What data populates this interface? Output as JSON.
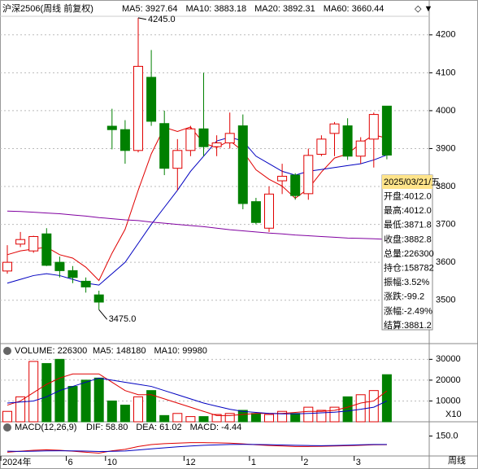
{
  "chart_data": [
    {
      "type": "candlestick",
      "title": "沪深2506(周线 前复权)",
      "categories": [
        "2024年",
        null,
        null,
        null,
        null,
        "6",
        null,
        null,
        "10",
        null,
        null,
        null,
        null,
        null,
        "12",
        null,
        null,
        null,
        null,
        "1",
        null,
        null,
        null,
        "2",
        null,
        null,
        null,
        "3",
        null,
        null
      ],
      "open": [
        3577,
        3648,
        3630,
        3675,
        3600,
        3578,
        3550,
        3514,
        3959,
        3950,
        3895,
        4088,
        3966,
        3848,
        3895,
        3952,
        3905,
        3915,
        3960,
        3760,
        3690,
        3815,
        3830,
        3781,
        3885,
        3940,
        3960,
        3880,
        3925,
        4012.0
      ],
      "high": [
        3645,
        3680,
        3670,
        3690,
        3615,
        3590,
        3560,
        3525,
        4005,
        3975,
        4245,
        4160,
        4000,
        3925,
        3960,
        4100,
        3935,
        3995,
        3990,
        3770,
        3800,
        3860,
        3835,
        3900,
        3935,
        3970,
        3980,
        3930,
        3995,
        4012.0
      ],
      "low": [
        3570,
        3640,
        3625,
        3590,
        3560,
        3545,
        3520,
        3475,
        3898,
        3860,
        3890,
        3960,
        3830,
        3790,
        3880,
        3880,
        3880,
        3900,
        3740,
        3700,
        3680,
        3780,
        3765,
        3765,
        3880,
        3880,
        3870,
        3860,
        3850,
        3871.8
      ],
      "close": [
        3600,
        3660,
        3668,
        3592,
        3578,
        3560,
        3535,
        3495,
        3950,
        3895,
        4117,
        3972,
        3848,
        3895,
        3952,
        3905,
        3915,
        3940,
        3755,
        3705,
        3780,
        3827,
        3776,
        3882,
        3925,
        3965,
        3880,
        3920,
        3990,
        3882.8
      ],
      "up_color": "#e00000",
      "down_color": "#008000",
      "ylim": [
        3422,
        4249
      ],
      "yticks": [
        3500,
        3600,
        3700,
        3800,
        3900,
        4000,
        4100,
        4200
      ],
      "lines": [
        {
          "label": "MA5: 3927.64",
          "color": "#e00000",
          "values": [
            3620,
            3630,
            3635,
            3640,
            3620,
            3611,
            3587,
            3552,
            3624,
            3687,
            3790,
            3886,
            3956,
            3945,
            3957,
            3914,
            3903,
            3921,
            3893,
            3844,
            3819,
            3801,
            3769,
            3794,
            3838,
            3875,
            3886,
            3914,
            3936,
            3927.64
          ]
        },
        {
          "label": "MA10: 3883.18",
          "color": "#0000c0",
          "values": [
            3545,
            3555,
            3565,
            3570,
            3565,
            3555,
            3545,
            3540,
            3570,
            3600,
            3650,
            3700,
            3745,
            3790,
            3840,
            3880,
            3920,
            3930,
            3920,
            3880,
            3860,
            3840,
            3830,
            3840,
            3845,
            3850,
            3855,
            3860,
            3870,
            3883.18
          ]
        },
        {
          "label": "MA20: 3892.31",
          "color": "#303030",
          "values": null
        },
        {
          "label": "MA60: 3660.44",
          "color": "#8000a0",
          "values": [
            3735,
            3734,
            3732,
            3730,
            3728,
            3725,
            3722,
            3718,
            3715,
            3712,
            3710,
            3706,
            3703,
            3700,
            3697,
            3694,
            3690,
            3686,
            3683,
            3680,
            3677,
            3675,
            3672,
            3670,
            3668,
            3666,
            3664,
            3663,
            3662,
            3660.44
          ]
        }
      ],
      "annotations": [
        "4245.0",
        "3475.0"
      ],
      "tooltip": [
        "2025/03/21/五",
        "开盘:4012.0",
        "最高:4012.0",
        "最低:3871.8",
        "收盘:3882.8",
        "总量:226300",
        "持仓:158782",
        "振幅:3.52%",
        "涨跌:-99.2",
        "涨幅:-2.49%",
        "结算:3881.2"
      ],
      "period": "周线"
    },
    {
      "type": "bar",
      "title": "VOLUME: 226300",
      "scale_label": "X10",
      "values": [
        5000,
        12000,
        29000,
        28000,
        30000,
        17000,
        20000,
        21000,
        10000,
        8000,
        12000,
        15000,
        3000,
        4000,
        2500,
        2500,
        3500,
        4000,
        5500,
        4000,
        3500,
        5000,
        4000,
        7000,
        5500,
        7000,
        12000,
        13000,
        15000,
        22630
      ],
      "ylim": [
        0,
        36000
      ],
      "yticks": [
        10000,
        20000,
        30000
      ],
      "lines": [
        {
          "label": "MA5: 148180",
          "color": "#e00000",
          "values": [
            8000,
            10000,
            14000,
            18000,
            21000,
            23000,
            23000,
            23000,
            19000,
            15000,
            13000,
            13000,
            11000,
            9000,
            7000,
            5000,
            3000,
            3000,
            3500,
            4000,
            4000,
            4000,
            4500,
            5000,
            5000,
            5500,
            7000,
            9000,
            10000,
            14818
          ]
        },
        {
          "label": "MA10: 99980",
          "color": "#0000c0",
          "values": [
            9000,
            9500,
            10000,
            12000,
            15000,
            17000,
            19000,
            21000,
            20000,
            19000,
            18000,
            17000,
            15000,
            13000,
            11000,
            9000,
            7500,
            6000,
            5000,
            4500,
            4000,
            3800,
            3800,
            4000,
            4300,
            4600,
            5200,
            6000,
            7000,
            9998
          ]
        }
      ]
    },
    {
      "type": "line",
      "title": "MACD(12,26,9)",
      "ylim": [
        -60,
        180
      ],
      "yticks": [
        {
          "value": 150,
          "label": "150.0"
        }
      ],
      "series": [
        {
          "name": "DIF: 58.80",
          "color": "#e00000",
          "values": [
            -20,
            -10,
            0,
            5,
            0,
            -10,
            -20,
            -30,
            -5,
            10,
            40,
            60,
            70,
            75,
            80,
            80,
            78,
            75,
            68,
            58,
            50,
            45,
            40,
            40,
            42,
            45,
            48,
            52,
            58,
            58.8
          ]
        },
        {
          "name": "DEA: 61.02",
          "color": "#0000c0",
          "values": [
            -10,
            -12,
            -10,
            -6,
            -5,
            -6,
            -9,
            -13,
            -11,
            -7,
            3,
            15,
            26,
            36,
            45,
            52,
            57,
            61,
            62,
            61,
            59,
            56,
            53,
            50,
            48,
            50,
            54,
            58,
            61,
            61.02
          ]
        },
        {
          "name": "MACD: -4.44",
          "color": "#800080",
          "values": null
        }
      ]
    }
  ]
}
